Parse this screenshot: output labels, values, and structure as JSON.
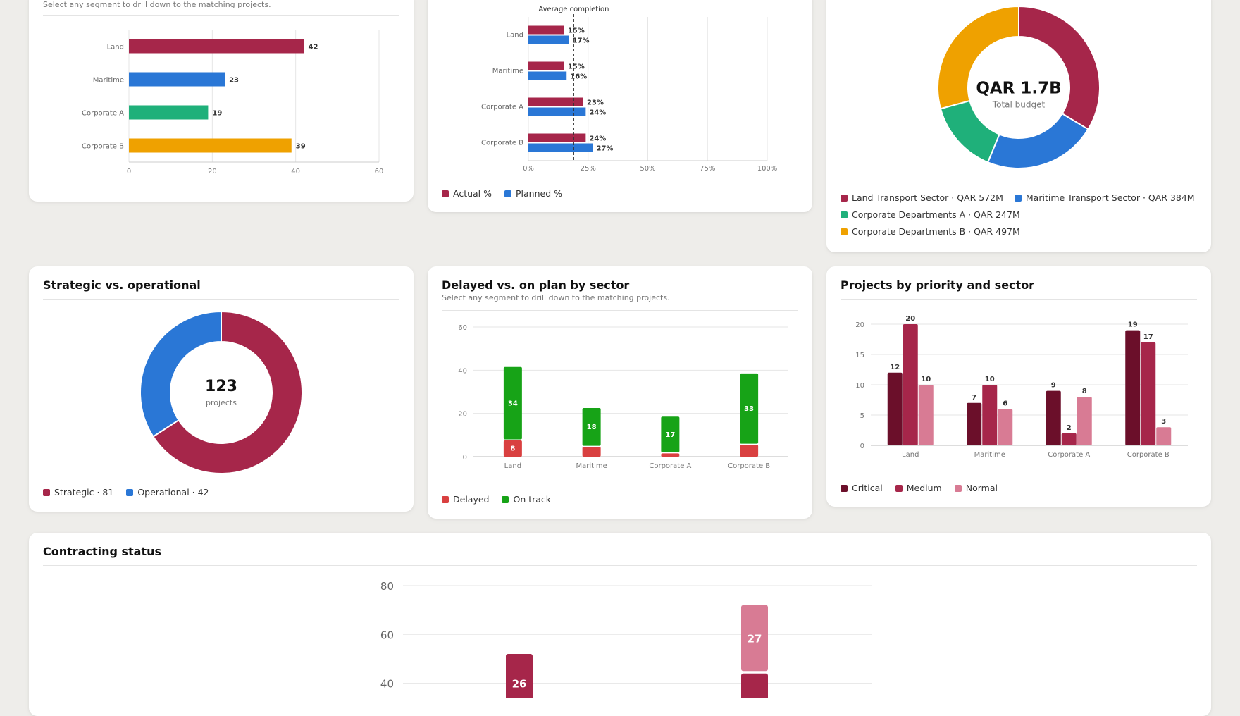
{
  "colors": {
    "land": "#a6264a",
    "maritime": "#2a77d6",
    "corpA": "#1fb07a",
    "corpB": "#efa100",
    "delayed": "#d94040",
    "on_track": "#17a317",
    "critical": "#6b0f2a",
    "medium": "#a6264a",
    "normal": "#d87b94"
  },
  "panel_projects_sector": {
    "subtitle": "Select any segment to drill down to the matching projects.",
    "chart_data": {
      "type": "bar",
      "orientation": "horizontal",
      "categories": [
        "Land",
        "Maritime",
        "Corporate A",
        "Corporate B"
      ],
      "values": [
        42,
        23,
        19,
        39
      ],
      "colors": [
        "#a6264a",
        "#2a77d6",
        "#1fb07a",
        "#efa100"
      ],
      "xlim": [
        0,
        60
      ],
      "xticks": [
        0,
        20,
        40,
        60
      ]
    }
  },
  "panel_completion": {
    "annotation": "Average completion",
    "legend": [
      {
        "label": "Actual %",
        "color": "#a6264a"
      },
      {
        "label": "Planned %",
        "color": "#2a77d6"
      }
    ],
    "chart_data": {
      "type": "bar",
      "orientation": "horizontal",
      "categories": [
        "Land",
        "Maritime",
        "Corporate A",
        "Corporate B"
      ],
      "series": [
        {
          "name": "Actual %",
          "values": [
            15,
            15,
            23,
            24
          ],
          "color": "#a6264a"
        },
        {
          "name": "Planned %",
          "values": [
            17,
            16,
            24,
            27
          ],
          "color": "#2a77d6"
        }
      ],
      "average_completion": 19,
      "xlim": [
        0,
        100
      ],
      "xticks": [
        "0%",
        "25%",
        "50%",
        "75%",
        "100%"
      ]
    }
  },
  "panel_budget": {
    "center_value": "QAR 1.7B",
    "center_label": "Total budget",
    "legend": [
      {
        "label": "Land Transport Sector · QAR 572M",
        "color": "#a6264a"
      },
      {
        "label": "Maritime Transport Sector · QAR 384M",
        "color": "#2a77d6"
      },
      {
        "label": "Corporate Departments A · QAR 247M",
        "color": "#1fb07a"
      },
      {
        "label": "Corporate Departments B · QAR 497M",
        "color": "#efa100"
      }
    ],
    "chart_data": {
      "type": "pie",
      "donut": true,
      "categories": [
        "Land Transport Sector",
        "Maritime Transport Sector",
        "Corporate Departments A",
        "Corporate Departments B"
      ],
      "values": [
        572,
        384,
        247,
        497
      ],
      "colors": [
        "#a6264a",
        "#2a77d6",
        "#1fb07a",
        "#efa100"
      ]
    }
  },
  "panel_strategic": {
    "title": "Strategic vs. operational",
    "center_value": "123",
    "center_label": "projects",
    "legend": [
      {
        "label": "Strategic · 81",
        "color": "#a6264a"
      },
      {
        "label": "Operational · 42",
        "color": "#2a77d6"
      }
    ],
    "chart_data": {
      "type": "pie",
      "donut": true,
      "categories": [
        "Strategic",
        "Operational"
      ],
      "values": [
        81,
        42
      ],
      "colors": [
        "#a6264a",
        "#2a77d6"
      ]
    }
  },
  "panel_delayed": {
    "title": "Delayed vs. on plan by sector",
    "subtitle": "Select any segment to drill down to the matching projects.",
    "legend": [
      {
        "label": "Delayed",
        "color": "#d94040"
      },
      {
        "label": "On track",
        "color": "#17a317"
      }
    ],
    "chart_data": {
      "type": "bar",
      "stacked": true,
      "categories": [
        "Land",
        "Maritime",
        "Corporate A",
        "Corporate B"
      ],
      "series": [
        {
          "name": "Delayed",
          "values": [
            8,
            5,
            2,
            6
          ],
          "color": "#d94040"
        },
        {
          "name": "On track",
          "values": [
            34,
            18,
            17,
            33
          ],
          "color": "#17a317"
        }
      ],
      "ylim": [
        0,
        60
      ],
      "yticks": [
        0,
        20,
        40,
        60
      ],
      "show_labels": [
        [
          true,
          false,
          false,
          false
        ],
        [
          true,
          true,
          true,
          true
        ]
      ]
    }
  },
  "panel_priority": {
    "title": "Projects by priority and sector",
    "legend": [
      {
        "label": "Critical",
        "color": "#6b0f2a"
      },
      {
        "label": "Medium",
        "color": "#a6264a"
      },
      {
        "label": "Normal",
        "color": "#d87b94"
      }
    ],
    "chart_data": {
      "type": "bar",
      "grouped": true,
      "categories": [
        "Land",
        "Maritime",
        "Corporate A",
        "Corporate B"
      ],
      "series": [
        {
          "name": "Critical",
          "values": [
            12,
            7,
            9,
            19
          ],
          "color": "#6b0f2a"
        },
        {
          "name": "Medium",
          "values": [
            20,
            10,
            2,
            17
          ],
          "color": "#a6264a"
        },
        {
          "name": "Normal",
          "values": [
            10,
            6,
            8,
            3
          ],
          "color": "#d87b94"
        }
      ],
      "ylim": [
        0,
        20
      ],
      "yticks": [
        0,
        5,
        10,
        15,
        20
      ]
    }
  },
  "panel_contracting": {
    "title": "Contracting status",
    "chart_data": {
      "type": "bar",
      "stacked": true,
      "visible_ylim": [
        40,
        80
      ],
      "yticks": [
        40,
        60,
        80
      ],
      "stacks": [
        {
          "segments": [
            {
              "value": 26,
              "color": "#a6264a",
              "label": "26"
            }
          ],
          "top": 52
        },
        {
          "segments": [
            {
              "value": 27,
              "color": "#d87b94",
              "label": "27"
            }
          ],
          "top": 72,
          "lower_top": 44
        }
      ]
    }
  }
}
